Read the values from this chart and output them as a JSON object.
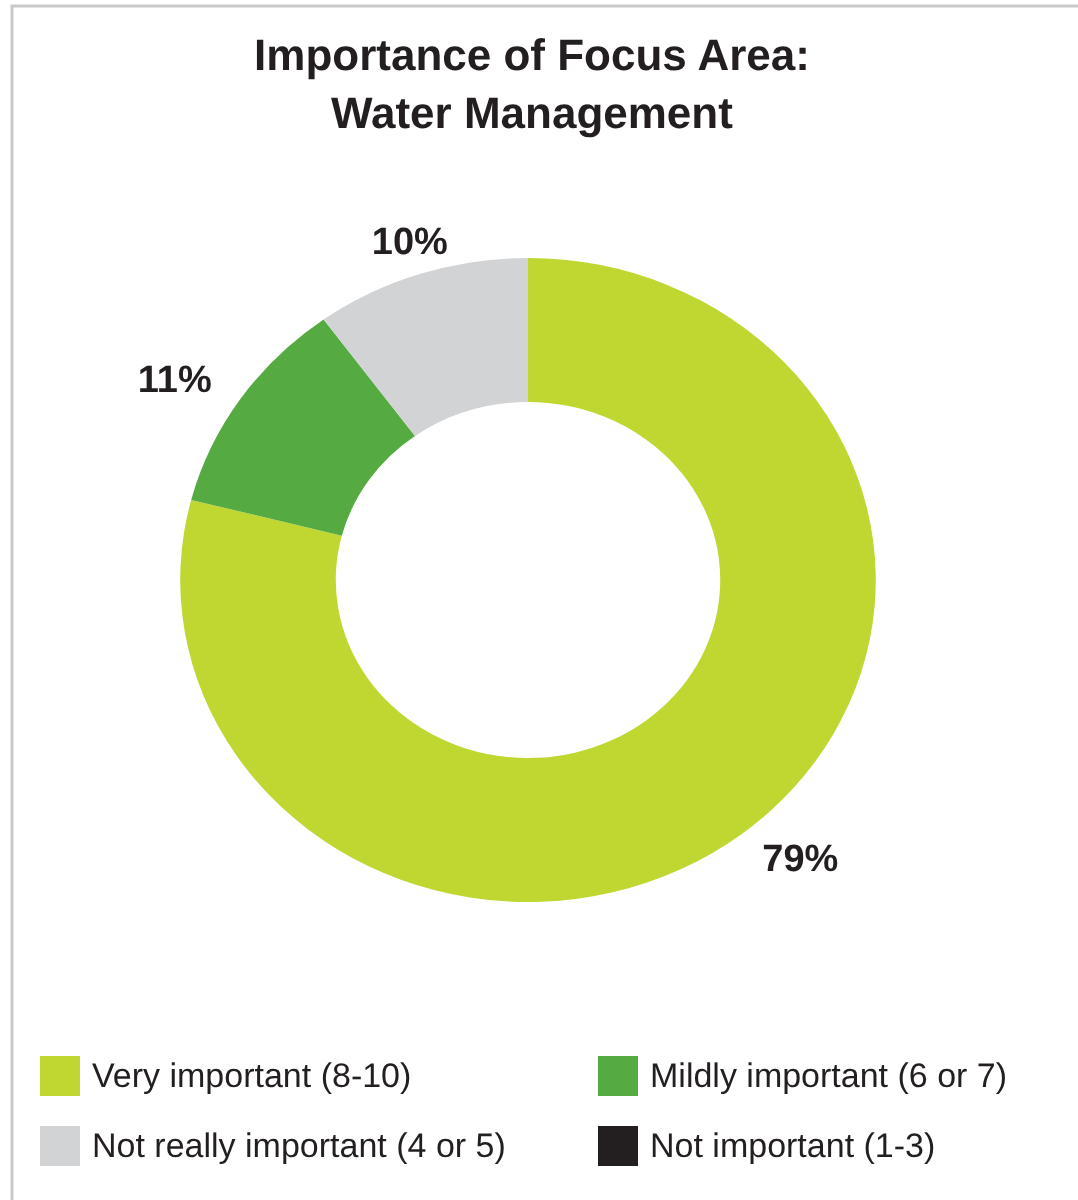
{
  "chart_data": {
    "type": "donut",
    "title": "Importance of Focus Area:\nWater Management",
    "categories": [
      "Very important (8-10)",
      "Mildly important (6 or 7)",
      "Not really important (4 or 5)",
      "Not important (1-3)"
    ],
    "values": [
      79,
      11,
      10,
      0
    ],
    "colors": [
      "#bfd730",
      "#55ab42",
      "#d1d3d4",
      "#231f20"
    ],
    "value_labels": [
      "79%",
      "11%",
      "10%",
      null
    ],
    "legend": "bottom"
  }
}
